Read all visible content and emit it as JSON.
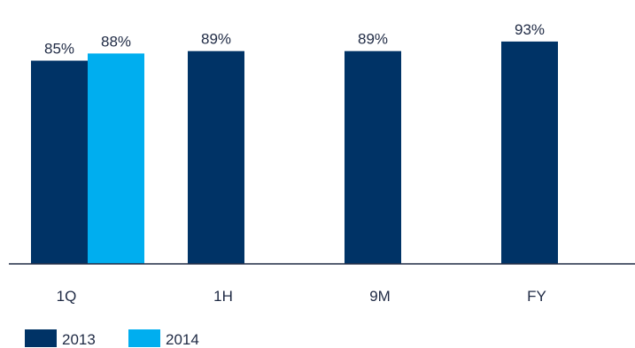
{
  "chart_data": {
    "type": "bar",
    "categories": [
      "1Q",
      "1H",
      "9M",
      "FY"
    ],
    "series": [
      {
        "name": "2013",
        "values": [
          85,
          89,
          89,
          93
        ],
        "labels": [
          "85%",
          "89%",
          "89%",
          "93%"
        ],
        "color": "#003366"
      },
      {
        "name": "2014",
        "values": [
          88,
          null,
          null,
          null
        ],
        "labels": [
          "88%",
          "",
          "",
          ""
        ],
        "color": "#00aeef"
      }
    ],
    "unit": "%",
    "title": "",
    "xlabel": "",
    "ylabel": "",
    "ylim": [
      0,
      100
    ],
    "grid": false,
    "legend_position": "bottom-left",
    "axis_color": "#1f2a44"
  }
}
